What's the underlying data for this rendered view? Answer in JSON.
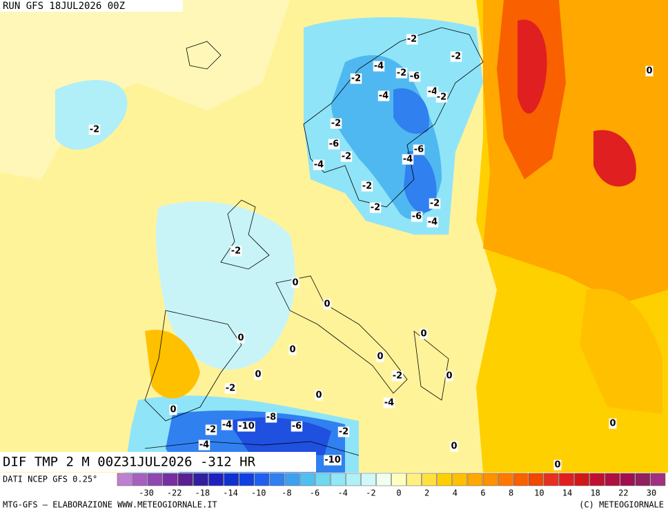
{
  "header": {
    "run": "RUN GFS 18JUL2026 00Z"
  },
  "map": {
    "title": "DIF TMP 2 M 00Z31JUL2026 -312 HR",
    "contour_labels": [
      "-2",
      "-2",
      "-4",
      "-2",
      "-2",
      "-6",
      "-4",
      "-4",
      "-2",
      "-2",
      "-2",
      "-6",
      "-2",
      "-4",
      "-6",
      "-4",
      "-2",
      "-2",
      "-2",
      "-6",
      "-4",
      "-2",
      "0",
      "0",
      "0",
      "0",
      "0",
      "0",
      "0",
      "-2",
      "0",
      "-2",
      "0",
      "-4",
      "0",
      "-8",
      "-6",
      "-4",
      "-10",
      "-2",
      "-2",
      "-4",
      "0",
      "0",
      "0",
      "0",
      "-10"
    ]
  },
  "source": "DATI NCEP GFS 0.25°",
  "colorbar": {
    "colors": [
      "#c080d0",
      "#a860c0",
      "#9048b0",
      "#7830a0",
      "#5a2090",
      "#3020a0",
      "#2020c0",
      "#1030d0",
      "#1040e0",
      "#2060f0",
      "#3080f0",
      "#40a0f0",
      "#50c0f0",
      "#70d8f0",
      "#90e8f8",
      "#b0f0f8",
      "#d0f8f8",
      "#f0fff0",
      "#ffffc0",
      "#fff080",
      "#ffe040",
      "#ffd000",
      "#ffc000",
      "#ffa800",
      "#ff9000",
      "#ff7800",
      "#f86000",
      "#f04800",
      "#e83020",
      "#e02020",
      "#d01818",
      "#c01030",
      "#b01040",
      "#a01050",
      "#902060",
      "#a03080"
    ],
    "labels": [
      "-30",
      "-22",
      "-18",
      "-14",
      "-10",
      "-8",
      "-6",
      "-4",
      "-2",
      "0",
      "2",
      "4",
      "6",
      "8",
      "10",
      "14",
      "18",
      "22",
      "30"
    ]
  },
  "footer": {
    "left": "MTG-GFS — ELABORAZIONE WWW.METEOGIORNALE.IT",
    "right": "(C) METEOGIORNALE"
  }
}
